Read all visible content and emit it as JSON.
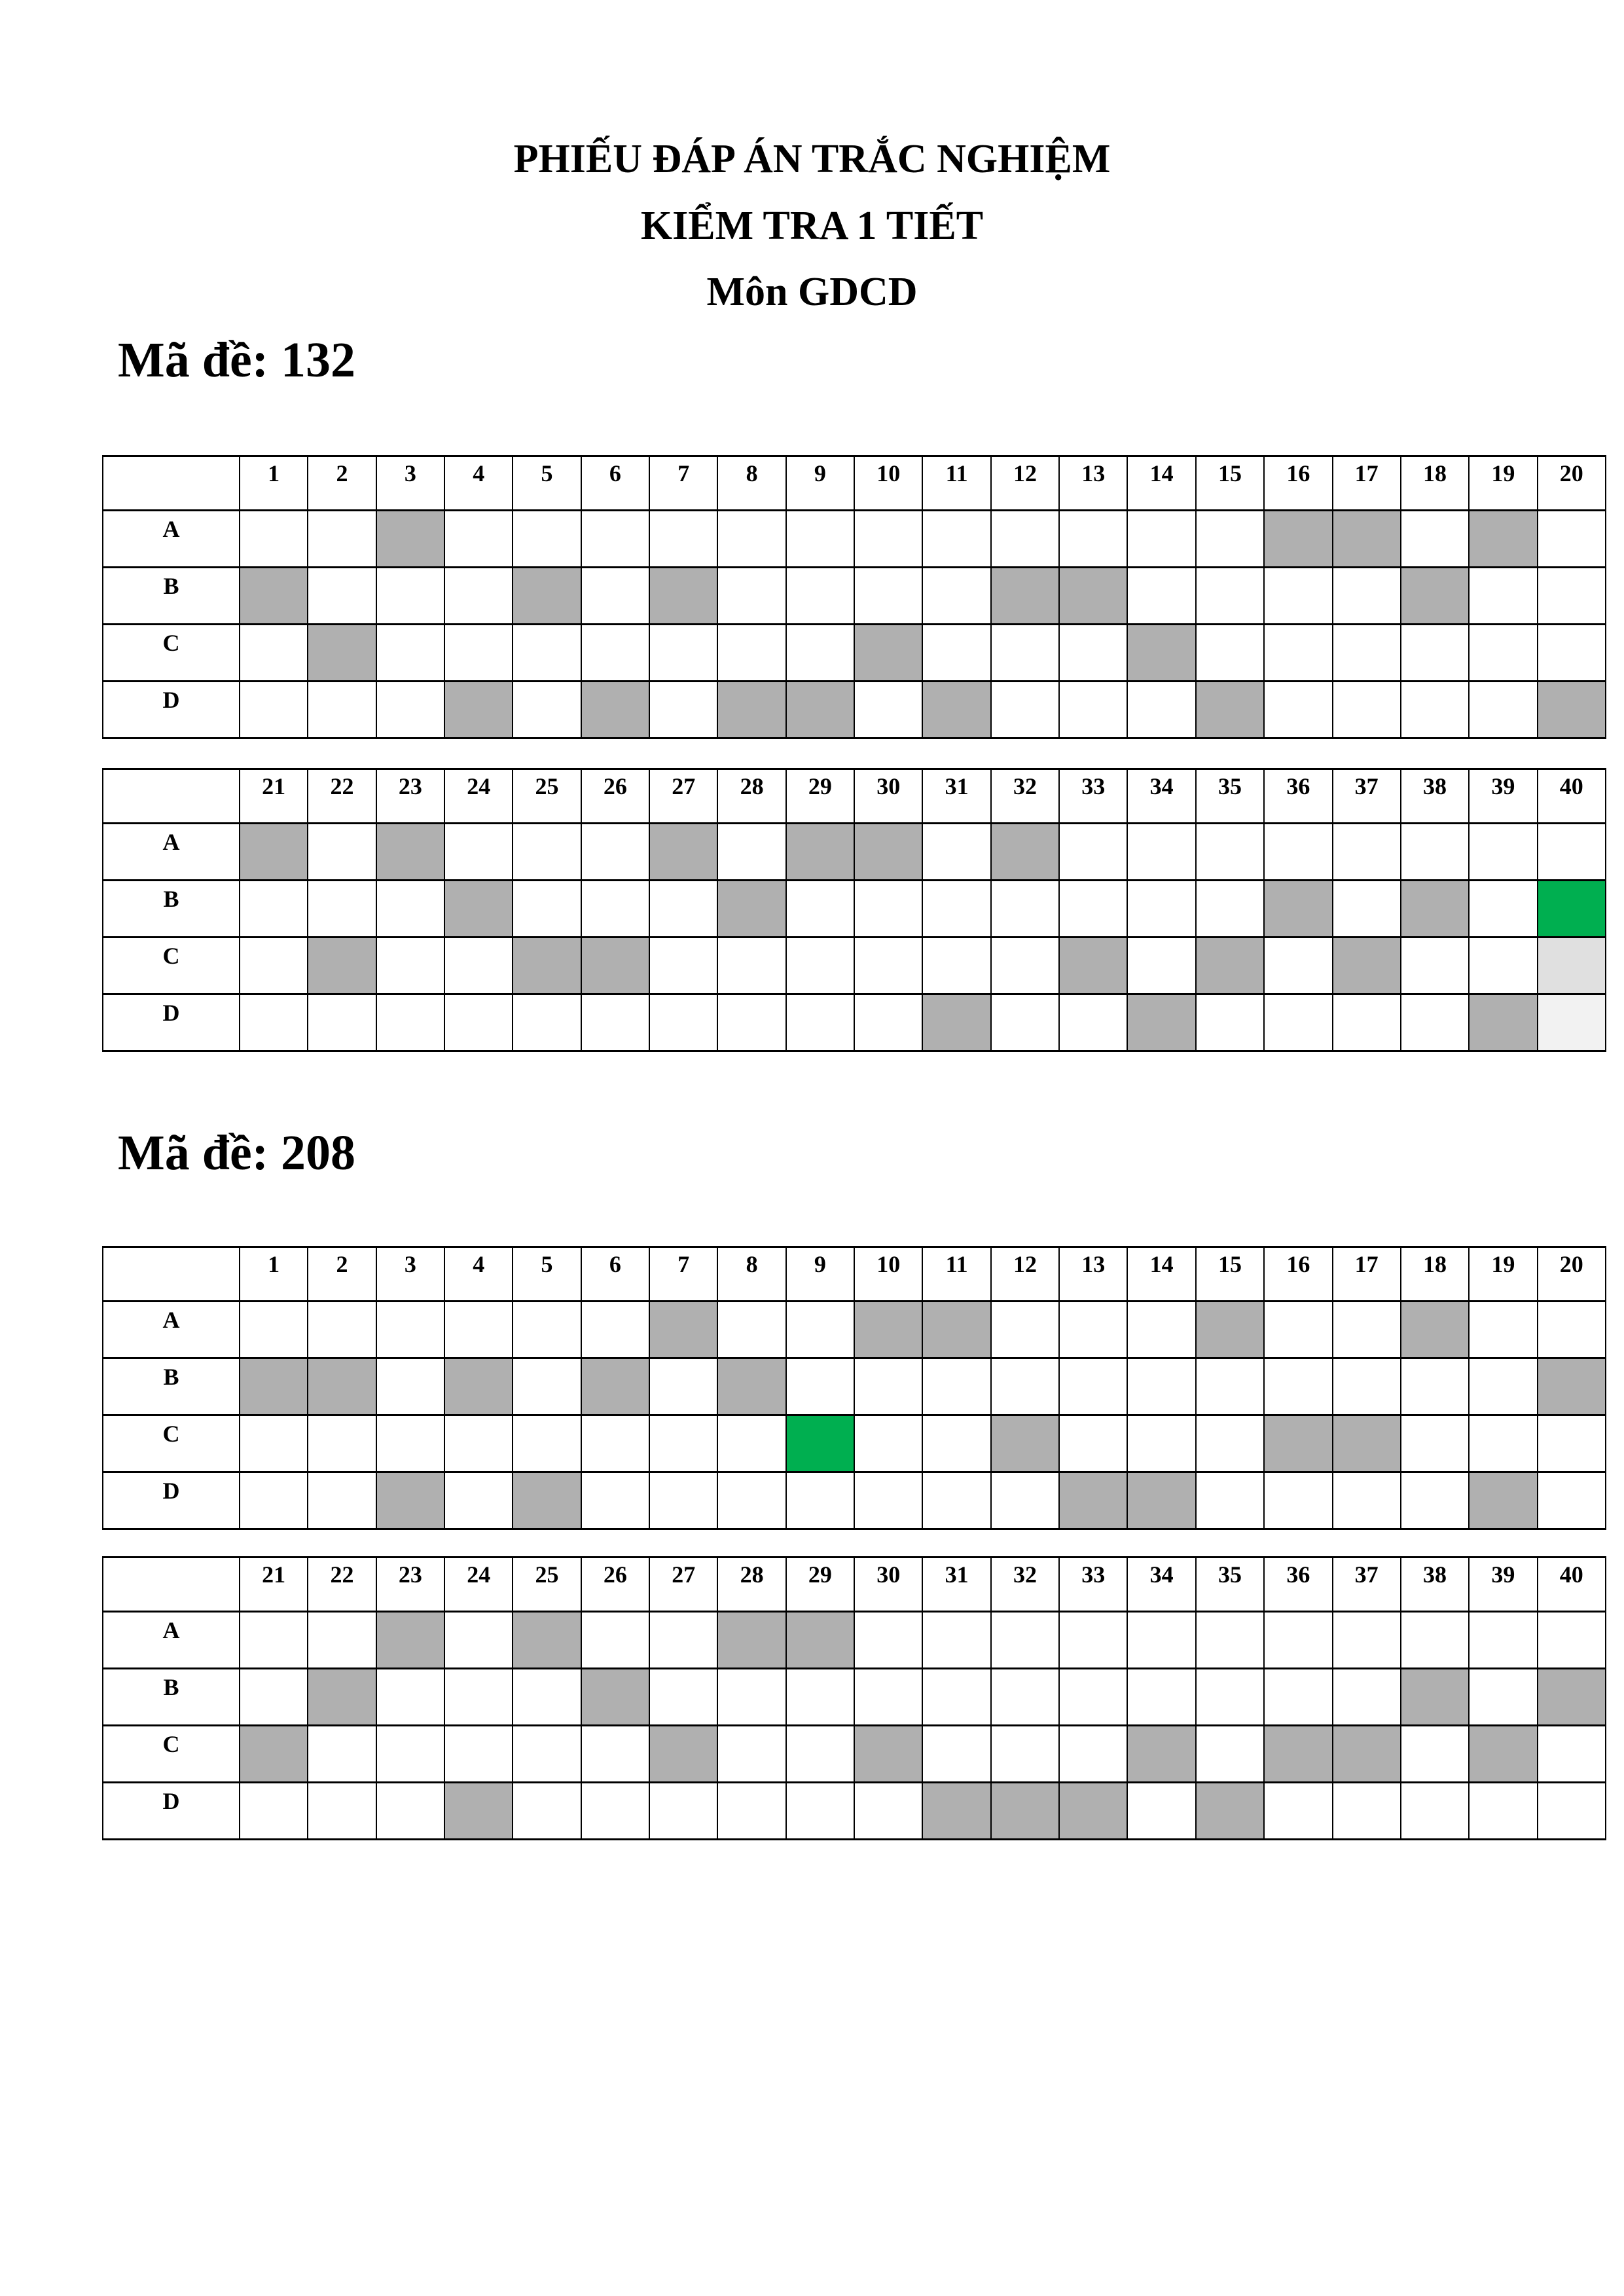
{
  "title_lines": [
    "PHIẾU ĐÁP ÁN TRẮC NGHIỆM",
    "KIỂM TRA 1 TIẾT",
    "Môn GDCD"
  ],
  "options": [
    "A",
    "B",
    "C",
    "D"
  ],
  "colors": {
    "marked": "#b0b0b0",
    "highlight": "#00af50",
    "faint1": "#e0e0e0",
    "faint2": "#f2f2f2"
  },
  "exams": [
    {
      "label": "Mã đề: 132",
      "answers": [
        "B",
        "C",
        "A",
        "D",
        "B",
        "D",
        "B",
        "D",
        "D",
        "C",
        "D",
        "B",
        "B",
        "C",
        "D",
        "A",
        "A",
        "B",
        "A",
        "D",
        "A",
        "C",
        "A",
        "B",
        "C",
        "C",
        "A",
        "B",
        "A",
        "A",
        "D",
        "A",
        "C",
        "D",
        "C",
        "B",
        "C",
        "B",
        "D",
        "B"
      ],
      "highlight": {
        "question": 40,
        "option": "B"
      },
      "faint_cells": [
        {
          "question": 40,
          "option": "C",
          "color": "#e0e0e0"
        },
        {
          "question": 40,
          "option": "D",
          "color": "#f2f2f2"
        }
      ]
    },
    {
      "label": "Mã đề: 208",
      "answers": [
        "B",
        "B",
        "D",
        "B",
        "D",
        "B",
        "A",
        "B",
        "C",
        "A",
        "A",
        "C",
        "D",
        "D",
        "A",
        "C",
        "C",
        "A",
        "D",
        "B",
        "C",
        "B",
        "A",
        "D",
        "A",
        "B",
        "C",
        "A",
        "A",
        "C",
        "D",
        "D",
        "D",
        "C",
        "D",
        "C",
        "C",
        "B",
        "C",
        "B"
      ],
      "highlight": {
        "question": 9,
        "option": "C"
      },
      "faint_cells": []
    }
  ]
}
